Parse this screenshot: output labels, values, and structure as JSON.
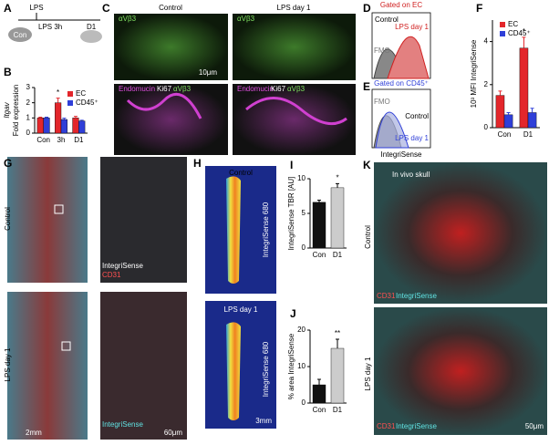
{
  "panel_labels": [
    "A",
    "B",
    "C",
    "D",
    "E",
    "F",
    "G",
    "H",
    "I",
    "J",
    "K"
  ],
  "panel_a": {
    "treatment": "LPS",
    "timepoints": [
      "LPS 3h",
      "D1"
    ],
    "mouse": "Con"
  },
  "panel_c": {
    "columns": [
      "Control",
      "LPS day 1"
    ],
    "stain_top": "αVβ3",
    "scale": "10μm",
    "stains_bottom": [
      "Endomucin",
      "Ki67",
      "αVβ3"
    ]
  },
  "panel_d": {
    "gate": "Gated on EC",
    "control": "Control",
    "lps": "LPS day 1",
    "fmo": "FMO"
  },
  "panel_e": {
    "gate": "Gated on CD45⁺",
    "fmo": "FMO",
    "control": "Control",
    "lps": "LPS day 1",
    "xlabel": "IntegriSense"
  },
  "panel_g": {
    "rows": [
      "Control",
      "LPS day 1"
    ],
    "stains": [
      "IntegriSense",
      "CD31"
    ],
    "scales": [
      "2mm",
      "60μm"
    ]
  },
  "panel_h": {
    "rows": [
      "Control",
      "LPS day 1"
    ],
    "label": "IntegriSense 680",
    "scale": "3mm"
  },
  "panel_k": {
    "inset": "In vivo skull",
    "rows": [
      "Control",
      "LPS day 1"
    ],
    "stains": [
      "CD31",
      "IntegriSense"
    ],
    "scale": "50μm"
  },
  "chart_data": [
    {
      "type": "bar",
      "gene": "Itgav",
      "ylabel": "Fold expression",
      "categories": [
        "Con",
        "3h",
        "D1"
      ],
      "series": [
        {
          "name": "EC",
          "color": "#e3262b",
          "values": [
            1.0,
            2.0,
            1.0
          ],
          "errors": [
            0.05,
            0.3,
            0.1
          ]
        },
        {
          "name": "CD45⁺",
          "color": "#2f3fd8",
          "values": [
            1.0,
            0.9,
            0.8
          ],
          "errors": [
            0.05,
            0.08,
            0.05
          ]
        }
      ],
      "ylim": [
        0,
        3
      ],
      "yticks": [
        0,
        1,
        2,
        3
      ],
      "annotation": "*"
    },
    {
      "type": "bar",
      "ylabel": "10³ MFI IntegriSense",
      "categories": [
        "Con",
        "D1"
      ],
      "series": [
        {
          "name": "EC",
          "color": "#e3262b",
          "values": [
            1.5,
            3.7
          ],
          "errors": [
            0.2,
            0.5
          ]
        },
        {
          "name": "CD45⁺",
          "color": "#2f3fd8",
          "values": [
            0.6,
            0.7
          ],
          "errors": [
            0.1,
            0.2
          ]
        }
      ],
      "ylim": [
        0,
        5
      ],
      "yticks": [
        0,
        2,
        4
      ],
      "annotation": "*"
    },
    {
      "type": "bar",
      "ylabel": "IntegriSense TBR [AU]",
      "categories": [
        "Con",
        "D1"
      ],
      "values": [
        6.6,
        8.7
      ],
      "errors": [
        0.3,
        0.6
      ],
      "colors": [
        "#111111",
        "#cccccc"
      ],
      "ylim": [
        0,
        10
      ],
      "yticks": [
        0,
        5,
        10
      ],
      "annotation": "*"
    },
    {
      "type": "bar",
      "ylabel": "% area IntegriSense",
      "categories": [
        "Con",
        "D1"
      ],
      "values": [
        5,
        15
      ],
      "errors": [
        1.5,
        2.5
      ],
      "colors": [
        "#111111",
        "#cccccc"
      ],
      "ylim": [
        0,
        20
      ],
      "yticks": [
        0,
        10,
        20
      ],
      "annotation": "**"
    }
  ]
}
